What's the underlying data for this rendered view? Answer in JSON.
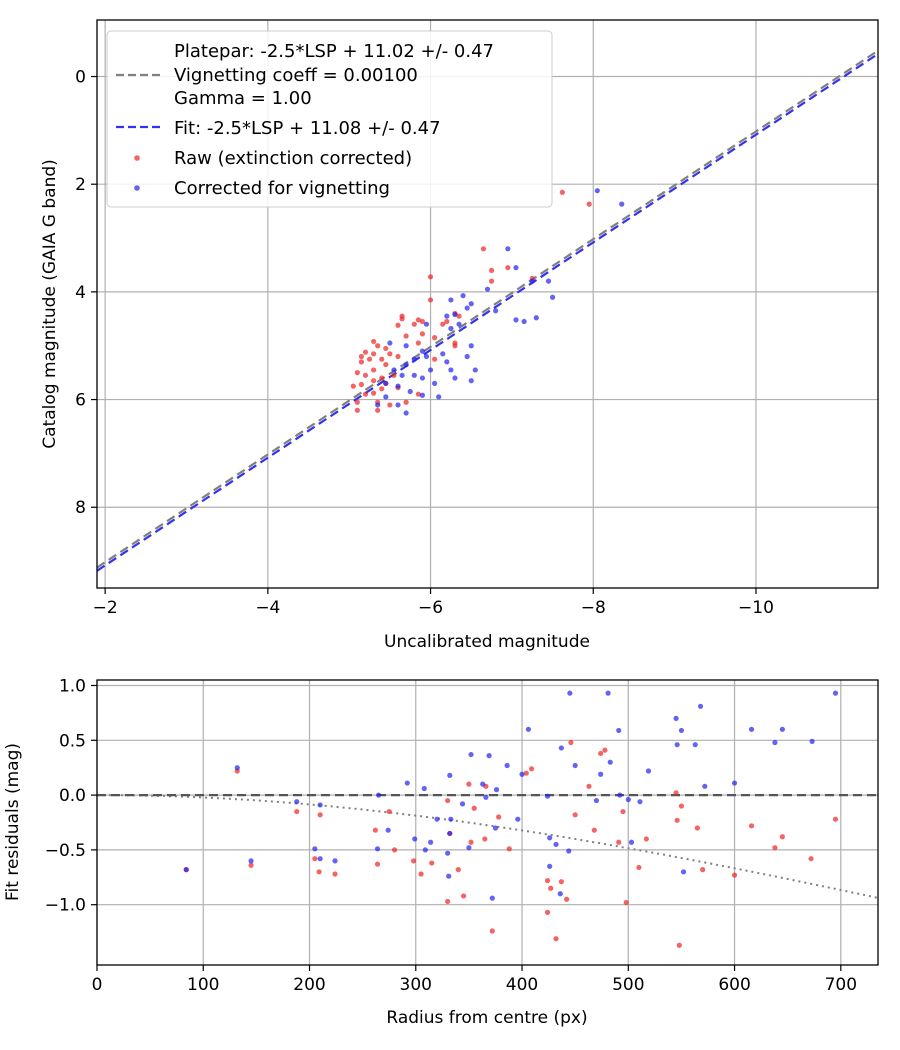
{
  "chart_data": [
    {
      "type": "scatter",
      "xlabel": "Uncalibrated magnitude",
      "ylabel": "Catalog magnitude (GAIA G band)",
      "xlim": [
        -1.9,
        -11.5
      ],
      "ylim": [
        9.5,
        -1.05
      ],
      "x_inverted": true,
      "y_inverted": true,
      "xticks": [
        -2,
        -4,
        -6,
        -8,
        -10
      ],
      "xtick_labels": [
        "−2",
        "−4",
        "−6",
        "−8",
        "−10"
      ],
      "yticks": [
        0,
        2,
        4,
        6,
        8
      ],
      "ytick_labels": [
        "0",
        "2",
        "4",
        "6",
        "8"
      ],
      "grid": true,
      "legend_position": "upper-left",
      "legend": [
        {
          "label": "Platepar: -2.5*LSP + 11.02 +/- 0.47",
          "symbol": "none"
        },
        {
          "label": "Vignetting coeff = 0.00100",
          "symbol": "dashed-gray"
        },
        {
          "label": "Gamma = 1.00",
          "symbol": "none"
        },
        {
          "label": "Fit: -2.5*LSP + 11.08 +/- 0.47",
          "symbol": "dashed-blue"
        },
        {
          "label": "Raw (extinction corrected)",
          "symbol": "red-dot"
        },
        {
          "label": "Corrected for vignetting",
          "symbol": "blue-dot"
        }
      ],
      "lines": [
        {
          "name": "Platepar",
          "slope": 1,
          "intercept": 11.02,
          "color": "#808080",
          "style": "dashed"
        },
        {
          "name": "Fit",
          "slope": 1,
          "intercept": 11.08,
          "color": "#3333ee",
          "style": "dashed"
        }
      ],
      "series": [
        {
          "name": "Raw (extinction corrected)",
          "color": "#ee2222",
          "points": [
            [
              -7.62,
              2.15
            ],
            [
              -7.95,
              2.37
            ],
            [
              -6.65,
              3.2
            ],
            [
              -6.75,
              3.6
            ],
            [
              -6.95,
              3.55
            ],
            [
              -7.25,
              3.75
            ],
            [
              -6.75,
              3.8
            ],
            [
              -6.0,
              3.72
            ],
            [
              -6.0,
              4.15
            ],
            [
              -6.3,
              4.4
            ],
            [
              -6.35,
              4.45
            ],
            [
              -5.65,
              4.45
            ],
            [
              -5.65,
              4.5
            ],
            [
              -5.85,
              4.52
            ],
            [
              -5.9,
              4.55
            ],
            [
              -5.8,
              4.6
            ],
            [
              -6.15,
              4.6
            ],
            [
              -6.2,
              4.55
            ],
            [
              -5.6,
              4.62
            ],
            [
              -5.9,
              4.78
            ],
            [
              -5.7,
              4.82
            ],
            [
              -6.05,
              4.85
            ],
            [
              -5.85,
              4.95
            ],
            [
              -5.3,
              4.92
            ],
            [
              -5.35,
              5.0
            ],
            [
              -5.45,
              5.05
            ],
            [
              -5.2,
              5.12
            ],
            [
              -5.15,
              5.2
            ],
            [
              -5.3,
              5.15
            ],
            [
              -5.5,
              5.15
            ],
            [
              -5.6,
              5.2
            ],
            [
              -5.25,
              5.25
            ],
            [
              -5.4,
              5.25
            ],
            [
              -5.15,
              5.3
            ],
            [
              -5.45,
              5.35
            ],
            [
              -5.3,
              5.45
            ],
            [
              -5.1,
              5.5
            ],
            [
              -5.2,
              5.55
            ],
            [
              -5.4,
              5.6
            ],
            [
              -5.55,
              5.55
            ],
            [
              -5.05,
              5.75
            ],
            [
              -5.15,
              5.72
            ],
            [
              -5.3,
              5.65
            ],
            [
              -5.45,
              5.7
            ],
            [
              -5.2,
              5.9
            ],
            [
              -5.3,
              5.88
            ],
            [
              -5.4,
              5.8
            ],
            [
              -5.1,
              6.05
            ],
            [
              -5.35,
              6.05
            ],
            [
              -5.1,
              6.2
            ],
            [
              -5.35,
              6.2
            ],
            [
              -5.5,
              6.1
            ],
            [
              -5.7,
              6.05
            ],
            [
              -5.85,
              5.9
            ],
            [
              -5.6,
              5.78
            ],
            [
              -6.3,
              4.95
            ],
            [
              -6.05,
              5.25
            ],
            [
              -6.3,
              5.0
            ]
          ]
        },
        {
          "name": "Corrected for vignetting",
          "color": "#2222ee",
          "points": [
            [
              -8.05,
              2.12
            ],
            [
              -8.35,
              2.37
            ],
            [
              -6.95,
              3.2
            ],
            [
              -7.05,
              3.55
            ],
            [
              -7.25,
              3.8
            ],
            [
              -6.7,
              3.95
            ],
            [
              -7.45,
              3.8
            ],
            [
              -7.5,
              4.1
            ],
            [
              -6.4,
              4.07
            ],
            [
              -6.25,
              4.15
            ],
            [
              -6.5,
              4.22
            ],
            [
              -6.45,
              4.3
            ],
            [
              -6.8,
              4.35
            ],
            [
              -6.3,
              4.42
            ],
            [
              -6.2,
              4.45
            ],
            [
              -7.05,
              4.52
            ],
            [
              -7.15,
              4.55
            ],
            [
              -7.3,
              4.48
            ],
            [
              -5.95,
              4.6
            ],
            [
              -6.25,
              4.68
            ],
            [
              -6.35,
              4.6
            ],
            [
              -5.5,
              4.95
            ],
            [
              -5.7,
              5.0
            ],
            [
              -5.9,
              5.1
            ],
            [
              -5.8,
              5.25
            ],
            [
              -5.95,
              5.2
            ],
            [
              -5.7,
              5.35
            ],
            [
              -5.55,
              5.45
            ],
            [
              -5.65,
              5.55
            ],
            [
              -5.9,
              5.6
            ],
            [
              -6.0,
              5.45
            ],
            [
              -6.25,
              5.45
            ],
            [
              -5.45,
              5.7
            ],
            [
              -5.6,
              5.75
            ],
            [
              -5.75,
              5.85
            ],
            [
              -5.45,
              5.95
            ],
            [
              -5.9,
              5.92
            ],
            [
              -6.1,
              5.95
            ],
            [
              -5.35,
              6.1
            ],
            [
              -5.6,
              6.1
            ],
            [
              -5.7,
              6.25
            ],
            [
              -6.05,
              5.7
            ],
            [
              -6.2,
              5.3
            ],
            [
              -6.45,
              5.2
            ],
            [
              -6.55,
              5.45
            ],
            [
              -6.5,
              5.0
            ],
            [
              -6.15,
              5.15
            ],
            [
              -6.3,
              5.6
            ],
            [
              -6.5,
              5.65
            ],
            [
              -5.8,
              5.55
            ]
          ]
        }
      ]
    },
    {
      "type": "scatter",
      "xlabel": "Radius from centre (px)",
      "ylabel": "Fit residuals (mag)",
      "xlim": [
        0,
        735
      ],
      "ylim": [
        -1.55,
        1.05
      ],
      "xticks": [
        0,
        100,
        200,
        300,
        400,
        500,
        600,
        700
      ],
      "xtick_labels": [
        "0",
        "100",
        "200",
        "300",
        "400",
        "500",
        "600",
        "700"
      ],
      "yticks": [
        1.0,
        0.5,
        0.0,
        -0.5,
        -1.0
      ],
      "ytick_labels": [
        "1.0",
        "0.5",
        "0.0",
        "−0.5",
        "−1.0"
      ],
      "grid": true,
      "reference_line": {
        "y": 0,
        "color": "#555555",
        "style": "dashed"
      },
      "vignetting_curve": {
        "coeff": 0.001,
        "color": "#808080",
        "style": "dotted"
      },
      "series": [
        {
          "name": "Raw (extinction corrected)",
          "color": "#ee2222",
          "points": [
            [
              84,
              -0.68
            ],
            [
              132,
              0.22
            ],
            [
              145,
              -0.64
            ],
            [
              188,
              -0.15
            ],
            [
              205,
              -0.58
            ],
            [
              209,
              -0.7
            ],
            [
              210,
              -0.18
            ],
            [
              224,
              -0.72
            ],
            [
              262,
              -0.32
            ],
            [
              264,
              -0.63
            ],
            [
              275,
              -0.15
            ],
            [
              280,
              -0.5
            ],
            [
              298,
              -0.6
            ],
            [
              305,
              -0.72
            ],
            [
              315,
              -0.62
            ],
            [
              330,
              -0.97
            ],
            [
              330,
              -0.05
            ],
            [
              332,
              -0.35
            ],
            [
              340,
              -0.68
            ],
            [
              345,
              -0.92
            ],
            [
              350,
              0.1
            ],
            [
              352,
              -0.43
            ],
            [
              355,
              -0.12
            ],
            [
              365,
              -0.4
            ],
            [
              366,
              0.08
            ],
            [
              372,
              -1.24
            ],
            [
              378,
              -0.2
            ],
            [
              388,
              -0.49
            ],
            [
              404,
              0.2
            ],
            [
              409,
              0.24
            ],
            [
              424,
              -0.78
            ],
            [
              424,
              -1.07
            ],
            [
              427,
              -0.85
            ],
            [
              432,
              -1.31
            ],
            [
              437,
              -0.79
            ],
            [
              442,
              -0.95
            ],
            [
              446,
              0.48
            ],
            [
              450,
              -0.18
            ],
            [
              463,
              0.08
            ],
            [
              468,
              -0.32
            ],
            [
              474,
              0.38
            ],
            [
              478,
              0.41
            ],
            [
              491,
              -0.43
            ],
            [
              495,
              -0.15
            ],
            [
              498,
              -0.98
            ],
            [
              510,
              -0.66
            ],
            [
              517,
              -0.4
            ],
            [
              545,
              0.02
            ],
            [
              546,
              -0.23
            ],
            [
              548,
              -1.37
            ],
            [
              550,
              -0.1
            ],
            [
              565,
              -0.3
            ],
            [
              570,
              -0.68
            ],
            [
              600,
              -0.73
            ],
            [
              616,
              -0.28
            ],
            [
              638,
              -0.48
            ],
            [
              645,
              -0.38
            ],
            [
              672,
              -0.58
            ],
            [
              695,
              -0.22
            ]
          ]
        },
        {
          "name": "Corrected for vignetting",
          "color": "#2222ee",
          "points": [
            [
              84,
              -0.68
            ],
            [
              132,
              0.25
            ],
            [
              145,
              -0.6
            ],
            [
              188,
              -0.06
            ],
            [
              205,
              -0.49
            ],
            [
              210,
              -0.09
            ],
            [
              210,
              -0.58
            ],
            [
              224,
              -0.6
            ],
            [
              264,
              -0.49
            ],
            [
              265,
              0.0
            ],
            [
              274,
              -0.32
            ],
            [
              292,
              0.11
            ],
            [
              299,
              -0.4
            ],
            [
              308,
              0.06
            ],
            [
              309,
              -0.5
            ],
            [
              314,
              -0.43
            ],
            [
              320,
              -0.22
            ],
            [
              331,
              -0.74
            ],
            [
              332,
              -0.35
            ],
            [
              333,
              -0.22
            ],
            [
              330,
              -0.53
            ],
            [
              332,
              0.18
            ],
            [
              344,
              -0.08
            ],
            [
              350,
              -0.48
            ],
            [
              352,
              0.37
            ],
            [
              363,
              0.1
            ],
            [
              366,
              -0.02
            ],
            [
              369,
              0.36
            ],
            [
              375,
              -0.3
            ],
            [
              372,
              -0.94
            ],
            [
              376,
              0.05
            ],
            [
              386,
              0.27
            ],
            [
              396,
              -0.22
            ],
            [
              400,
              0.19
            ],
            [
              406,
              0.6
            ],
            [
              424,
              -0.01
            ],
            [
              426,
              -0.39
            ],
            [
              426,
              -0.65
            ],
            [
              432,
              -0.45
            ],
            [
              436,
              -0.9
            ],
            [
              437,
              0.43
            ],
            [
              444,
              -0.51
            ],
            [
              445,
              0.93
            ],
            [
              450,
              0.27
            ],
            [
              470,
              -0.05
            ],
            [
              474,
              0.19
            ],
            [
              481,
              0.93
            ],
            [
              483,
              0.3
            ],
            [
              491,
              0.59
            ],
            [
              492,
              0.0
            ],
            [
              500,
              -0.04
            ],
            [
              503,
              -0.43
            ],
            [
              511,
              -0.06
            ],
            [
              519,
              0.22
            ],
            [
              545,
              0.7
            ],
            [
              546,
              0.46
            ],
            [
              550,
              0.59
            ],
            [
              552,
              -0.7
            ],
            [
              563,
              0.46
            ],
            [
              568,
              0.81
            ],
            [
              572,
              0.08
            ],
            [
              600,
              0.11
            ],
            [
              616,
              0.6
            ],
            [
              638,
              0.48
            ],
            [
              645,
              0.6
            ],
            [
              673,
              0.49
            ],
            [
              695,
              0.93
            ]
          ]
        }
      ]
    }
  ]
}
